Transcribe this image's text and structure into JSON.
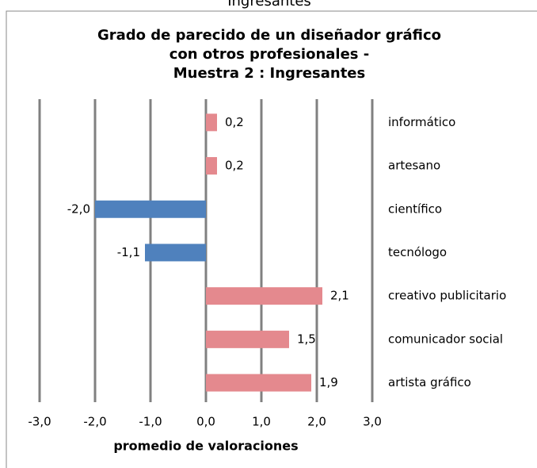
{
  "chart_data": {
    "type": "hbar",
    "caption": "Ingresantes",
    "title": [
      "Grado de parecido  de un diseñador gráfico",
      "con otros profesionales -",
      "Muestra  2 : Ingresantes"
    ],
    "xlabel": "promedio de valoraciones",
    "categories": [
      "informático",
      "artesano",
      "científico",
      "tecnólogo",
      "creativo publicitario",
      "comunicador social",
      "artista gráfico"
    ],
    "values": [
      0.2,
      0.2,
      -2.0,
      -1.1,
      2.1,
      1.5,
      1.9
    ],
    "value_labels": [
      "0,2",
      "0,2",
      "-2,0",
      "-1,1",
      "2,1",
      "1,5",
      "1,9"
    ],
    "colors": [
      "#e4898e",
      "#e4898e",
      "#4f81bd",
      "#4f81bd",
      "#e4898e",
      "#e4898e",
      "#e4898e"
    ],
    "xlim": [
      -3,
      3
    ],
    "xticks": [
      {
        "value": -3,
        "label": "-3,0"
      },
      {
        "value": -2,
        "label": "-2,0"
      },
      {
        "value": -1,
        "label": "-1,0"
      },
      {
        "value": 0,
        "label": "0,0"
      },
      {
        "value": 1,
        "label": "1,0"
      },
      {
        "value": 2,
        "label": "2,0"
      },
      {
        "value": 3,
        "label": "3,0"
      }
    ],
    "grid": true
  }
}
